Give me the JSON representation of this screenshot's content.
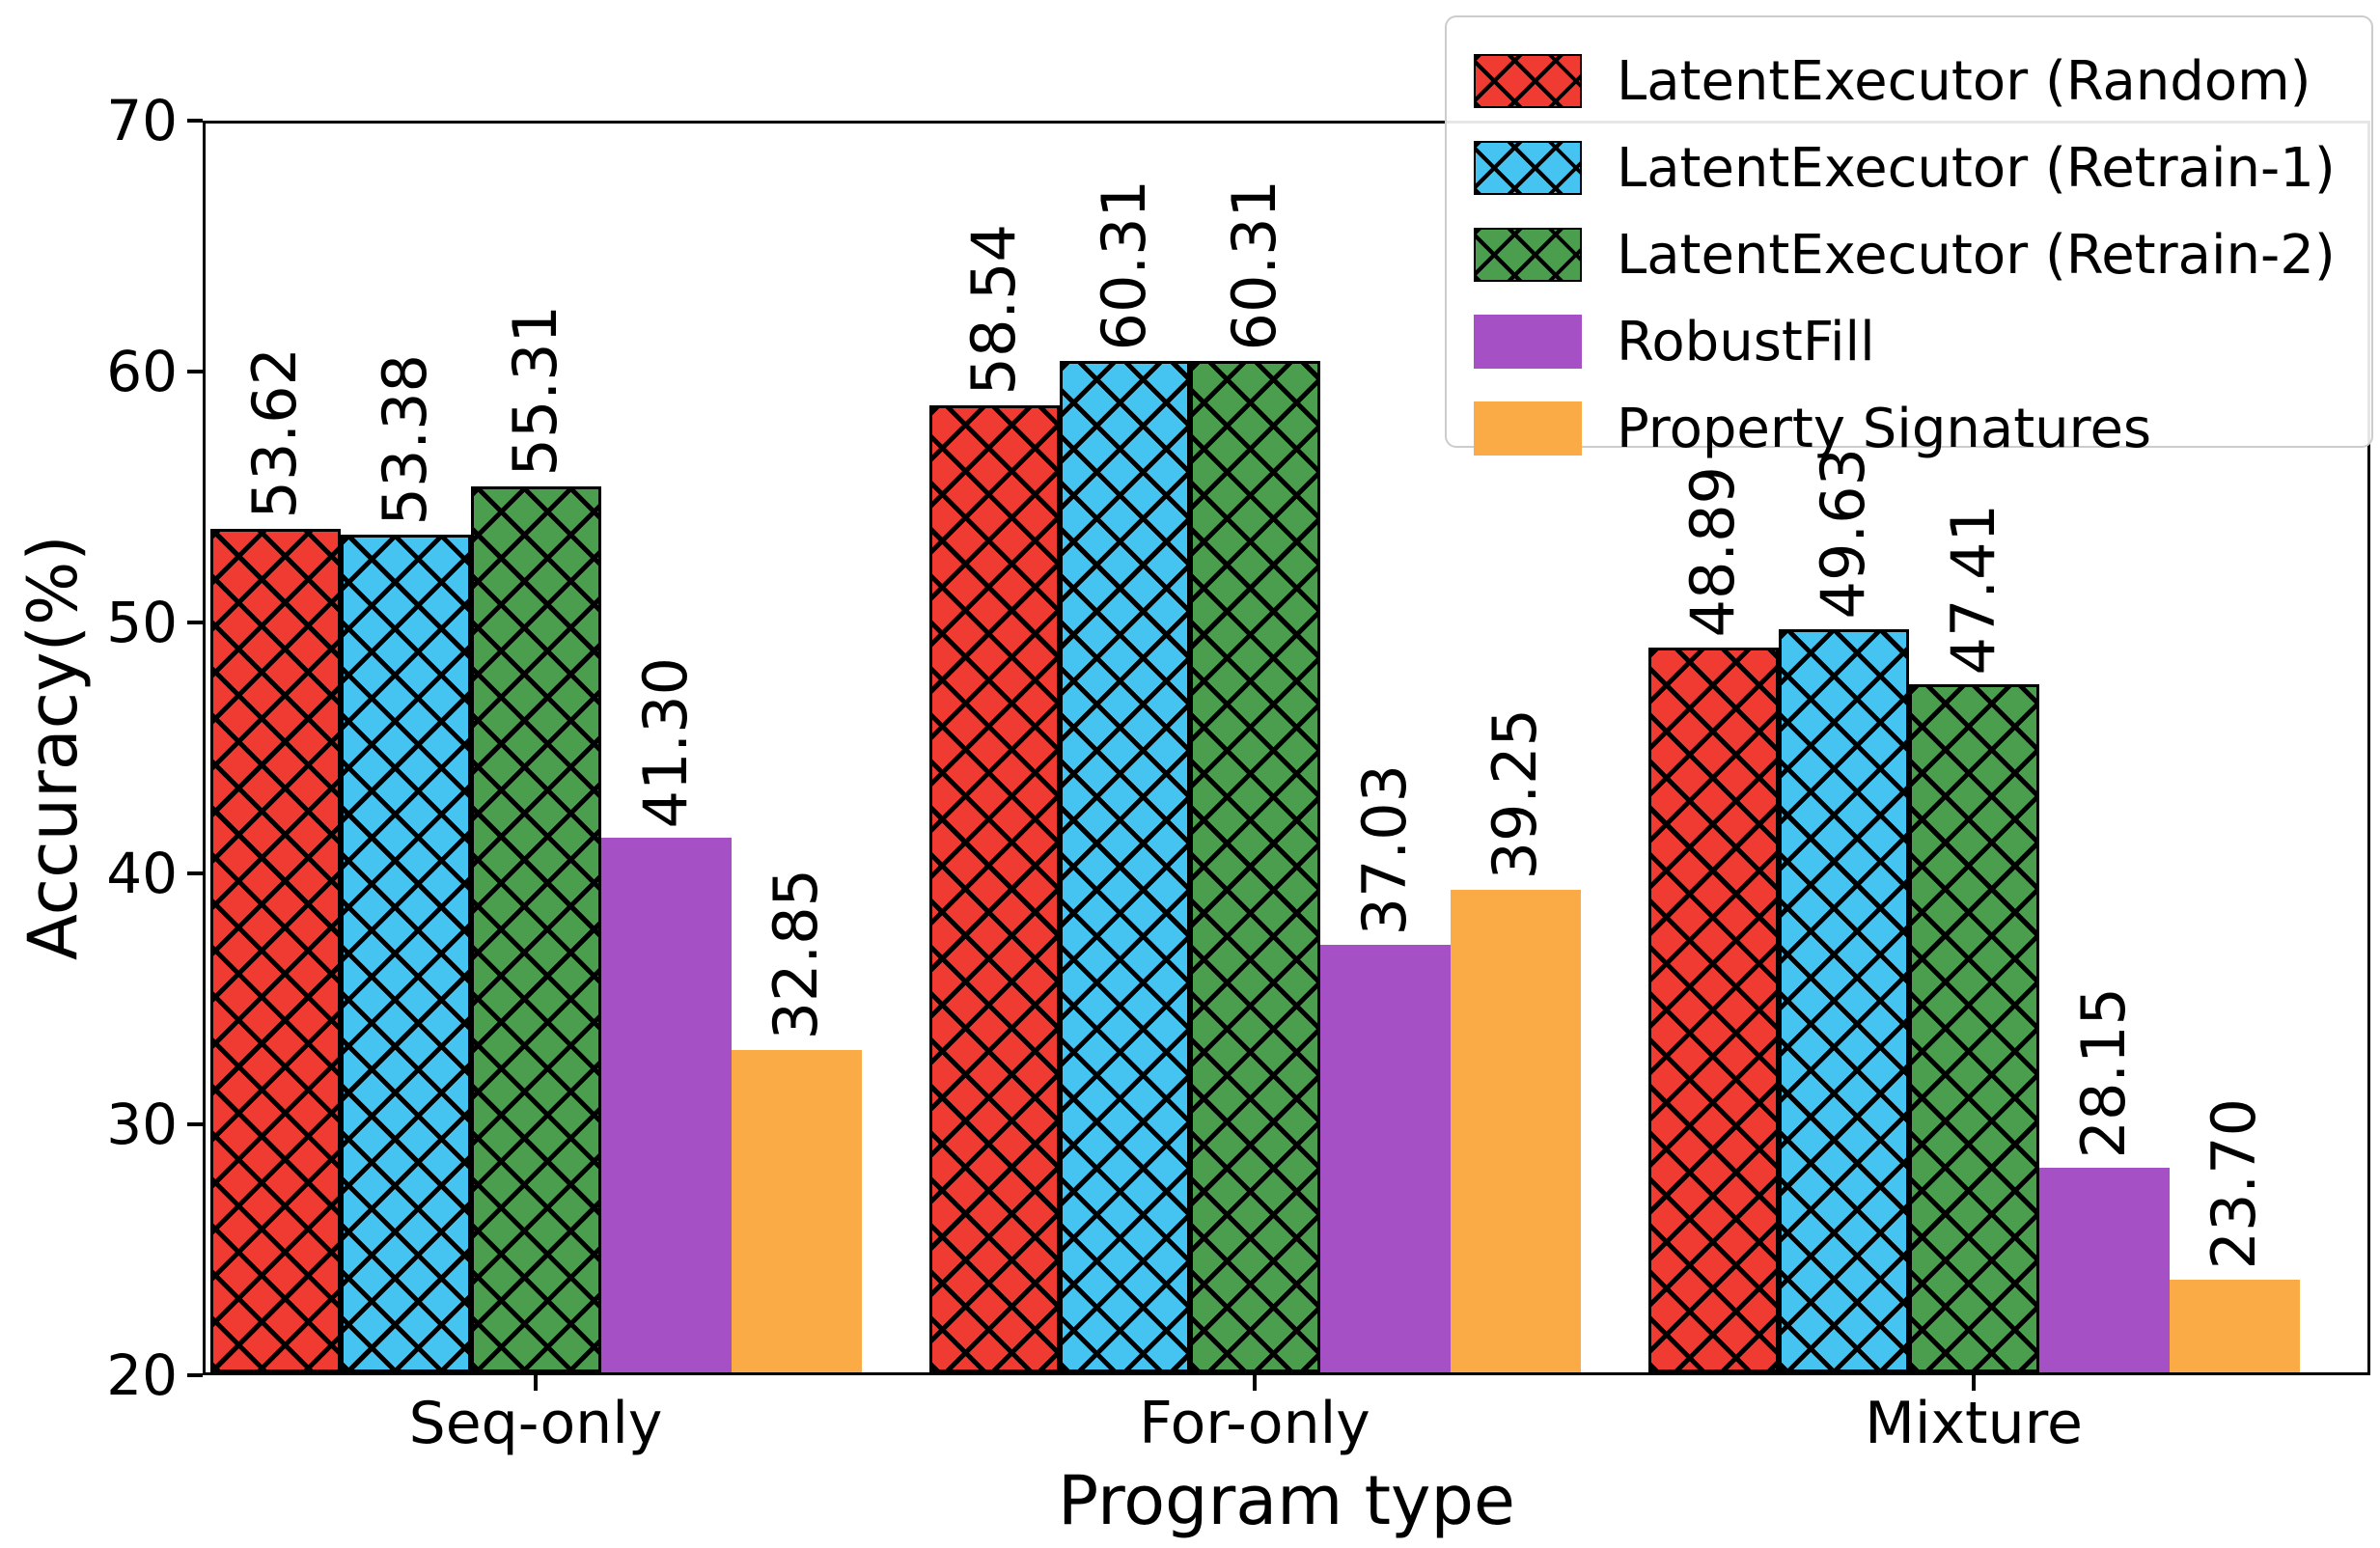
{
  "chart_data": {
    "type": "bar",
    "title": "",
    "xlabel": "Program type",
    "ylabel": "Accuracy(%)",
    "categories": [
      "Seq-only",
      "For-only",
      "Mixture"
    ],
    "series": [
      {
        "name": "LatentExecutor (Random)",
        "color": "#f03b33",
        "hatch": "xx",
        "values": [
          53.62,
          58.54,
          48.89
        ]
      },
      {
        "name": "LatentExecutor (Retrain-1)",
        "color": "#45c4f2",
        "hatch": "xx",
        "values": [
          53.38,
          60.31,
          49.63
        ]
      },
      {
        "name": "LatentExecutor (Retrain-2)",
        "color": "#4c9e4f",
        "hatch": "xx",
        "values": [
          55.31,
          60.31,
          47.41
        ]
      },
      {
        "name": "RobustFill",
        "color": "#a551c5",
        "hatch": null,
        "values": [
          41.3,
          37.03,
          28.15
        ]
      },
      {
        "name": "Property Signatures",
        "color": "#fbab45",
        "hatch": null,
        "values": [
          32.85,
          39.25,
          23.7
        ]
      }
    ],
    "bar_value_labels": [
      [
        "53.62",
        "53.38",
        "55.31",
        "41.30",
        "32.85"
      ],
      [
        "58.54",
        "60.31",
        "60.31",
        "37.03",
        "39.25"
      ],
      [
        "48.89",
        "49.63",
        "47.41",
        "28.15",
        "23.70"
      ]
    ],
    "ylim": [
      20,
      70
    ],
    "yticks": [
      "20",
      "30",
      "40",
      "50",
      "60",
      "70"
    ],
    "grid": false,
    "legend_position": "upper right",
    "hatch_color": "#000000",
    "axis_color": "#000000"
  }
}
